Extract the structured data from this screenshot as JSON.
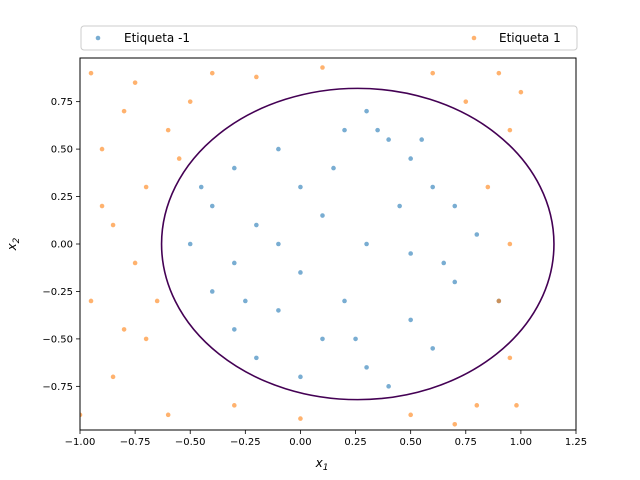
{
  "chart_data": {
    "type": "scatter",
    "title": "",
    "xlabel_main": "x",
    "xlabel_sub": "1",
    "ylabel_main": "x",
    "ylabel_sub": "2",
    "xlim": [
      -1.0,
      1.25
    ],
    "ylim": [
      -0.98,
      0.98
    ],
    "x_ticks": [
      -1.0,
      -0.75,
      -0.5,
      -0.25,
      0.0,
      0.25,
      0.5,
      0.75,
      1.0,
      1.25
    ],
    "x_tick_labels": [
      "−1.00",
      "−0.75",
      "−0.50",
      "−0.25",
      "0.00",
      "0.25",
      "0.50",
      "0.75",
      "1.00",
      "1.25"
    ],
    "y_ticks": [
      -0.75,
      -0.5,
      -0.25,
      0.0,
      0.25,
      0.5,
      0.75
    ],
    "y_tick_labels": [
      "−0.75",
      "−0.50",
      "−0.25",
      "0.00",
      "0.25",
      "0.50",
      "0.75"
    ],
    "grid": false,
    "legend": {
      "placement": "top-outside",
      "columns": 2
    },
    "series": [
      {
        "name": "Etiqueta -1",
        "color": "#1f77b4",
        "points": [
          [
            0.3,
            0.7
          ],
          [
            0.2,
            0.6
          ],
          [
            0.4,
            0.55
          ],
          [
            -0.1,
            0.5
          ],
          [
            0.5,
            0.45
          ],
          [
            -0.3,
            0.4
          ],
          [
            0.6,
            0.3
          ],
          [
            0.0,
            0.3
          ],
          [
            -0.4,
            0.2
          ],
          [
            0.7,
            0.2
          ],
          [
            0.1,
            0.15
          ],
          [
            -0.2,
            0.1
          ],
          [
            0.8,
            0.05
          ],
          [
            0.3,
            0.0
          ],
          [
            -0.5,
            0.0
          ],
          [
            0.5,
            -0.05
          ],
          [
            -0.3,
            -0.1
          ],
          [
            0.0,
            -0.15
          ],
          [
            0.7,
            -0.2
          ],
          [
            -0.4,
            -0.25
          ],
          [
            0.2,
            -0.3
          ],
          [
            0.9,
            -0.3
          ],
          [
            -0.1,
            -0.35
          ],
          [
            0.5,
            -0.4
          ],
          [
            -0.3,
            -0.45
          ],
          [
            0.1,
            -0.5
          ],
          [
            0.6,
            -0.55
          ],
          [
            -0.2,
            -0.6
          ],
          [
            0.3,
            -0.65
          ],
          [
            0.0,
            -0.7
          ],
          [
            0.4,
            -0.75
          ],
          [
            -0.1,
            0.0
          ],
          [
            0.15,
            0.4
          ],
          [
            0.45,
            0.2
          ],
          [
            -0.25,
            -0.3
          ],
          [
            0.65,
            -0.1
          ],
          [
            0.35,
            0.6
          ],
          [
            -0.45,
            0.3
          ],
          [
            0.25,
            -0.5
          ],
          [
            0.55,
            0.55
          ]
        ]
      },
      {
        "name": "Etiqueta 1",
        "color": "#ff7f0e",
        "points": [
          [
            -0.95,
            0.9
          ],
          [
            -0.8,
            0.7
          ],
          [
            -0.9,
            0.5
          ],
          [
            -0.7,
            0.3
          ],
          [
            -0.85,
            0.1
          ],
          [
            -0.75,
            -0.1
          ],
          [
            -0.95,
            -0.3
          ],
          [
            -0.7,
            -0.5
          ],
          [
            -0.85,
            -0.7
          ],
          [
            -0.6,
            -0.9
          ],
          [
            -0.4,
            0.9
          ],
          [
            -0.5,
            0.75
          ],
          [
            -0.6,
            0.6
          ],
          [
            0.9,
            0.9
          ],
          [
            0.95,
            0.6
          ],
          [
            0.85,
            0.3
          ],
          [
            0.95,
            0.0
          ],
          [
            0.9,
            -0.3
          ],
          [
            0.95,
            -0.6
          ],
          [
            0.8,
            -0.85
          ],
          [
            0.5,
            -0.9
          ],
          [
            0.0,
            -0.92
          ],
          [
            -0.3,
            -0.85
          ],
          [
            0.6,
            0.9
          ],
          [
            0.1,
            0.93
          ],
          [
            -0.2,
            0.88
          ],
          [
            -0.65,
            -0.3
          ],
          [
            -0.55,
            0.45
          ],
          [
            1.0,
            0.8
          ],
          [
            -1.0,
            -0.9
          ],
          [
            0.7,
            -0.95
          ],
          [
            -0.75,
            0.85
          ],
          [
            0.98,
            -0.85
          ],
          [
            -0.9,
            0.2
          ],
          [
            -0.8,
            -0.45
          ],
          [
            0.75,
            0.75
          ]
        ]
      }
    ],
    "decision_boundary": {
      "type": "ellipse",
      "color": "#440154",
      "center": [
        0.26,
        0.0
      ],
      "radii": [
        0.89,
        0.82
      ]
    }
  }
}
